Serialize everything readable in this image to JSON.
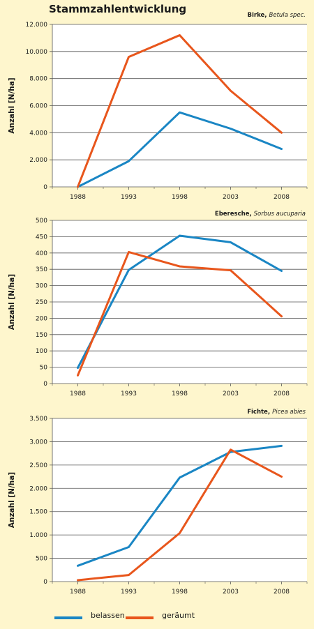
{
  "title": "Stammzahlentwicklung",
  "colors": {
    "belassen": "#1a86c4",
    "geraeumt": "#e8561c",
    "grid": "#555555",
    "bg": "#fef6cd",
    "plot": "#ffffff"
  },
  "legend": [
    {
      "key": "belassen",
      "label": "belassen"
    },
    {
      "key": "geraeumt",
      "label": "geräumt"
    }
  ],
  "chart_data": [
    {
      "type": "line",
      "species": "Birke,",
      "species_latin": "Betula spec.",
      "ylabel": "Anzahl [N/ha]",
      "x": [
        "1988",
        "1993",
        "1998",
        "2003",
        "2008"
      ],
      "ylim": [
        0,
        12000
      ],
      "yticks": [
        0,
        2000,
        4000,
        6000,
        8000,
        10000,
        12000
      ],
      "yticklabels": [
        "0",
        "2.000",
        "4.000",
        "6.000",
        "8.000",
        "10.000",
        "12.000"
      ],
      "grid": true,
      "series": [
        {
          "name": "belassen",
          "values": [
            0,
            1900,
            5500,
            4300,
            2800
          ]
        },
        {
          "name": "geräumt",
          "values": [
            0,
            9600,
            11200,
            7100,
            4000
          ]
        }
      ]
    },
    {
      "type": "line",
      "species": "Eberesche,",
      "species_latin": "Sorbus aucuparia",
      "ylabel": "Anzahl [N/ha]",
      "x": [
        "1988",
        "1993",
        "1998",
        "2003",
        "2008"
      ],
      "ylim": [
        0,
        500
      ],
      "yticks": [
        0,
        50,
        100,
        150,
        200,
        250,
        300,
        350,
        400,
        450,
        500
      ],
      "yticklabels": [
        "0",
        "50",
        "100",
        "150",
        "200",
        "250",
        "300",
        "350",
        "400",
        "450",
        "500"
      ],
      "grid": true,
      "series": [
        {
          "name": "belassen",
          "values": [
            48,
            348,
            453,
            433,
            345
          ]
        },
        {
          "name": "geräumt",
          "values": [
            25,
            403,
            359,
            347,
            206
          ]
        }
      ]
    },
    {
      "type": "line",
      "species": "Fichte,",
      "species_latin": "Picea abies",
      "ylabel": "Anzahl [N/ha]",
      "x": [
        "1988",
        "1993",
        "1998",
        "2003",
        "2008"
      ],
      "ylim": [
        0,
        3500
      ],
      "yticks": [
        0,
        500,
        1000,
        1500,
        2000,
        2500,
        3000,
        3500
      ],
      "yticklabels": [
        "0",
        "500",
        "1.000",
        "1.500",
        "2.000",
        "2.500",
        "3.000",
        "3.500"
      ],
      "grid": true,
      "series": [
        {
          "name": "belassen",
          "values": [
            340,
            740,
            2230,
            2780,
            2910
          ]
        },
        {
          "name": "geräumt",
          "values": [
            30,
            140,
            1040,
            2830,
            2250
          ]
        }
      ]
    }
  ]
}
